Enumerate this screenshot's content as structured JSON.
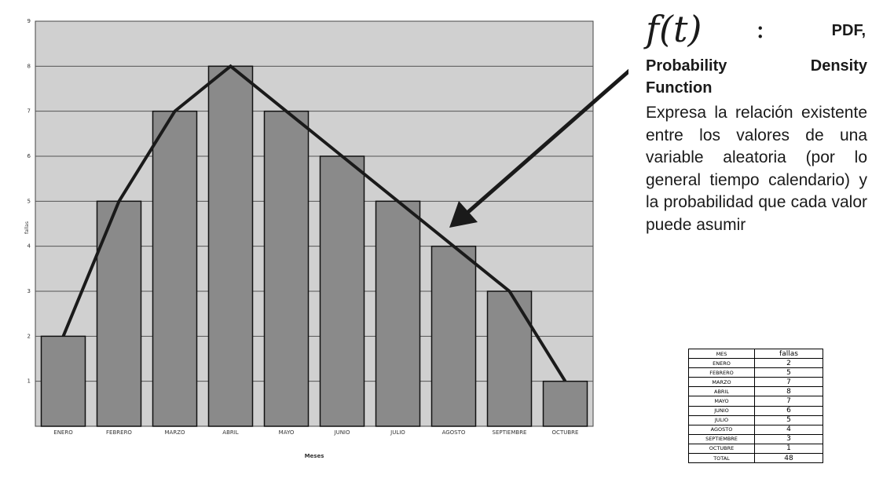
{
  "chart_data": {
    "type": "bar",
    "categories": [
      "ENERO",
      "FEBRERO",
      "MARZO",
      "ABRIL",
      "MAYO",
      "JUNIO",
      "JULIO",
      "AGOSTO",
      "SEPTIEMBRE",
      "OCTUBRE"
    ],
    "values": [
      2,
      5,
      7,
      8,
      7,
      6,
      5,
      4,
      3,
      1
    ],
    "overlay_line": true,
    "xlabel": "Meses",
    "ylabel": "fallas",
    "ylim": [
      0,
      9
    ],
    "yticks": [
      "1",
      "2",
      "3",
      "4",
      "5",
      "6",
      "7",
      "8",
      "9"
    ],
    "grid": true,
    "plot_background": "#d0d0d0",
    "bar_color": "#8a8a8a",
    "line_color": "#1a1a1a"
  },
  "annotation": {
    "formula": "f(t)",
    "colon": ":",
    "abbrev": "PDF,",
    "heading_line1_a": "Probability",
    "heading_line1_b": "Density",
    "heading_line2": "Function",
    "description": "Expresa la relación existente entre los valores de una variable aleatoria (por lo general tiempo calendario) y la probabilidad que cada valor puede asumir",
    "arrow": "arrow-pointer"
  },
  "table": {
    "headers": [
      "MES",
      "fallas"
    ],
    "rows": [
      [
        "ENERO",
        "2"
      ],
      [
        "FEBRERO",
        "5"
      ],
      [
        "MARZO",
        "7"
      ],
      [
        "ABRIL",
        "8"
      ],
      [
        "MAYO",
        "7"
      ],
      [
        "JUNIO",
        "6"
      ],
      [
        "JULIO",
        "5"
      ],
      [
        "AGOSTO",
        "4"
      ],
      [
        "SEPTIEMBRE",
        "3"
      ],
      [
        "OCTUBRE",
        "1"
      ],
      [
        "TOTAL",
        "48"
      ]
    ]
  }
}
